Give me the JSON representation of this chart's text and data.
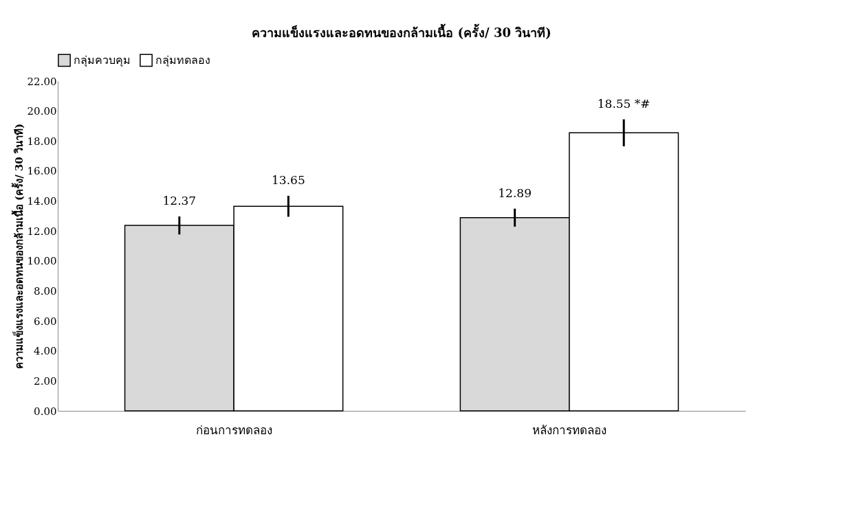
{
  "chart_data": {
    "type": "bar",
    "title": "ความแข็งแรงและอดทนของกล้ามเนื้อ (ครั้ง/ 30 วินาที)",
    "ylabel": "ความแข็งแรงและอดทนของกล้ามเนื้อ (ครั้ง/ 30 วินาที)",
    "categories": [
      "ก่อนการทดลอง",
      "หลังการทดลอง"
    ],
    "series": [
      {
        "name": "กลุ่มควบคุม",
        "color": "#d9d9d9",
        "values": [
          12.37,
          12.89
        ],
        "errors": [
          0.6,
          0.6
        ],
        "value_labels": [
          "12.37",
          "12.89"
        ]
      },
      {
        "name": "กลุ่มทดลอง",
        "color": "#ffffff",
        "values": [
          13.65,
          18.55
        ],
        "errors": [
          0.7,
          0.9
        ],
        "value_labels": [
          "13.65",
          "18.55 *#"
        ]
      }
    ],
    "ylim": [
      0,
      22
    ],
    "yticks": [
      {
        "value": 0,
        "label": "0.00"
      },
      {
        "value": 2,
        "label": "2.00"
      },
      {
        "value": 4,
        "label": "4.00"
      },
      {
        "value": 6,
        "label": "6.00"
      },
      {
        "value": 8,
        "label": "8.00"
      },
      {
        "value": 10,
        "label": "10.00"
      },
      {
        "value": 12,
        "label": "12.00"
      },
      {
        "value": 14,
        "label": "14.00"
      },
      {
        "value": 16,
        "label": "16.00"
      },
      {
        "value": 18,
        "label": "18.00"
      },
      {
        "value": 20,
        "label": "20.00"
      },
      {
        "value": 22,
        "label": "22.00"
      }
    ],
    "grid": false,
    "legend": "top"
  }
}
